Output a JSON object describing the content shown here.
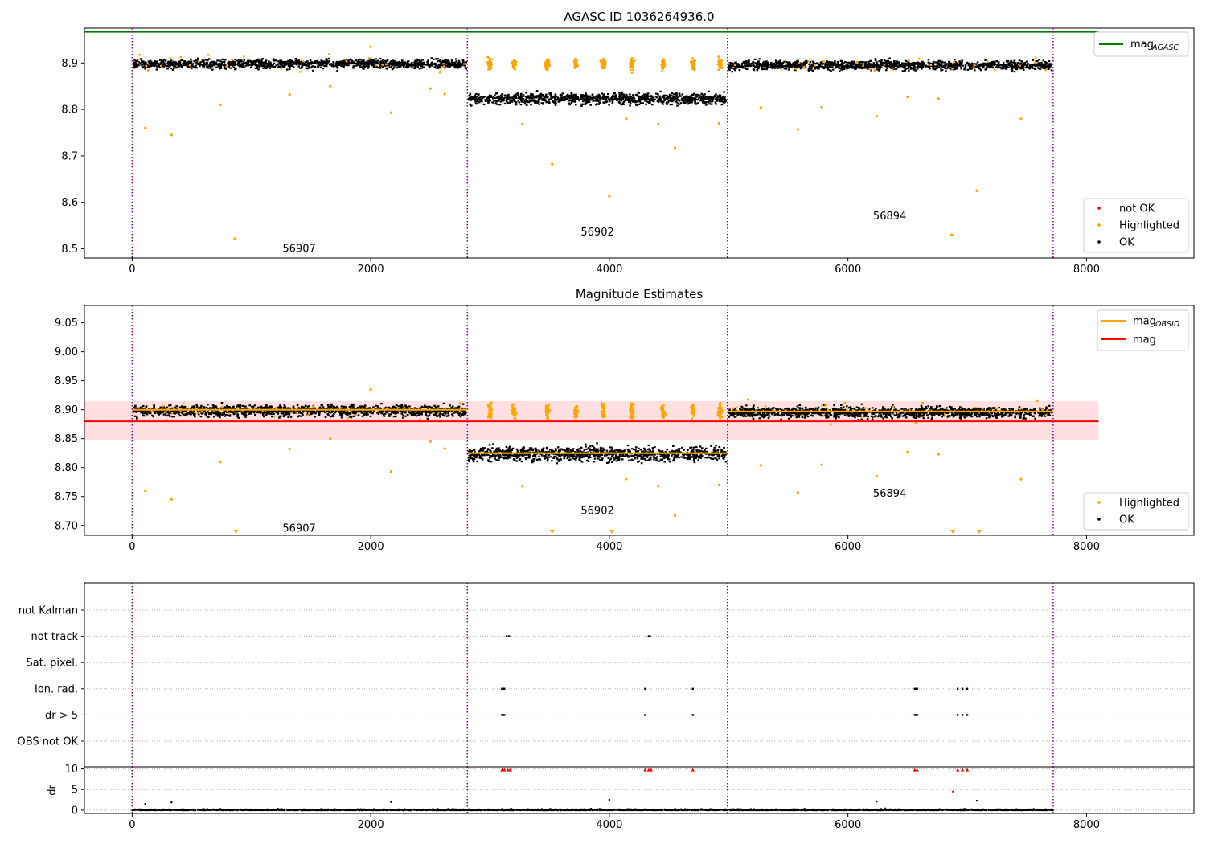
{
  "chart_data": [
    {
      "type": "scatter",
      "title": "AGASC ID 1036264936.0",
      "xlim": [
        -400,
        8900
      ],
      "ylim": [
        8.48,
        8.975
      ],
      "yticks": [
        "8.5",
        "8.6",
        "8.7",
        "8.8",
        "8.9"
      ],
      "xticks": [
        "0",
        "2000",
        "4000",
        "6000",
        "8000"
      ],
      "obs_boundaries": [
        0,
        2810,
        4990,
        7720
      ],
      "obs_labels": [
        {
          "text": "56907",
          "x": 1400,
          "y": 8.5
        },
        {
          "text": "56902",
          "x": 3900,
          "y": 8.535
        },
        {
          "text": "56894",
          "x": 6350,
          "y": 8.57
        }
      ],
      "mag_agasc": 8.967,
      "obs_mean_levels": [
        {
          "x0": 0,
          "x1": 2810,
          "y": 8.9,
          "spread": 0.008
        },
        {
          "x0": 2810,
          "x1": 4990,
          "y": 8.825,
          "spread": 0.01
        },
        {
          "x0": 4990,
          "x1": 7720,
          "y": 8.897,
          "spread": 0.008
        }
      ],
      "highlighted_points": [
        [
          110,
          8.76
        ],
        [
          330,
          8.745
        ],
        [
          740,
          8.81
        ],
        [
          860,
          8.522
        ],
        [
          1320,
          8.832
        ],
        [
          1660,
          8.85
        ],
        [
          2170,
          8.793
        ],
        [
          2500,
          8.845
        ],
        [
          2620,
          8.833
        ],
        [
          3270,
          8.768
        ],
        [
          3520,
          8.682
        ],
        [
          4000,
          8.613
        ],
        [
          4140,
          8.78
        ],
        [
          4410,
          8.768
        ],
        [
          4550,
          8.717
        ],
        [
          4920,
          8.77
        ],
        [
          5270,
          8.804
        ],
        [
          5580,
          8.757
        ],
        [
          5780,
          8.805
        ],
        [
          6240,
          8.785
        ],
        [
          6500,
          8.827
        ],
        [
          6760,
          8.823
        ],
        [
          6870,
          8.53
        ],
        [
          7080,
          8.625
        ],
        [
          7450,
          8.78
        ],
        [
          2000,
          8.935
        ],
        [
          2580,
          8.88
        ]
      ],
      "highlighted_clusters": [
        3000,
        3200,
        3480,
        3720,
        3950,
        4190,
        4450,
        4700,
        4930
      ],
      "legend_upper": [
        {
          "label": "mag",
          "sub": "AGASC",
          "color": "#008000"
        }
      ],
      "legend_lower": [
        {
          "label": "not OK",
          "color": "#ff0000"
        },
        {
          "label": "Highlighted",
          "color": "#ffa500"
        },
        {
          "label": "OK",
          "color": "#000000"
        }
      ]
    },
    {
      "type": "scatter",
      "title": "Magnitude Estimates",
      "xlim": [
        -400,
        8900
      ],
      "ylim": [
        8.683,
        9.08
      ],
      "yticks": [
        "8.70",
        "8.75",
        "8.80",
        "8.85",
        "8.90",
        "8.95",
        "9.00",
        "9.05"
      ],
      "xticks": [
        "0",
        "2000",
        "4000",
        "6000",
        "8000"
      ],
      "obs_boundaries": [
        0,
        2810,
        4990,
        7720
      ],
      "obs_labels": [
        {
          "text": "56907",
          "x": 1400,
          "y": 8.695
        },
        {
          "text": "56902",
          "x": 3900,
          "y": 8.725
        },
        {
          "text": "56894",
          "x": 6350,
          "y": 8.755
        }
      ],
      "mag": 8.88,
      "mag_band": [
        8.847,
        8.915
      ],
      "mag_obsid": [
        {
          "x0": 0,
          "x1": 2810,
          "y": 8.9
        },
        {
          "x0": 2810,
          "x1": 4990,
          "y": 8.825
        },
        {
          "x0": 4990,
          "x1": 7720,
          "y": 8.897
        }
      ],
      "offscale_markers": [
        870,
        3520,
        4020,
        6880,
        7100
      ],
      "legend_upper": [
        {
          "label": "mag",
          "sub": "OBSID",
          "color": "#ffa500"
        },
        {
          "label": "mag",
          "sub": "",
          "color": "#ff0000"
        }
      ],
      "legend_lower": [
        {
          "label": "Highlighted",
          "color": "#ffa500"
        },
        {
          "label": "OK",
          "color": "#000000"
        }
      ]
    },
    {
      "type": "scatter",
      "xlim": [
        -400,
        8900
      ],
      "categories": [
        "not Kalman",
        "not track",
        "Sat. pixel.",
        "Ion. rad.",
        "dr > 5",
        "OBS not OK"
      ],
      "flags": {
        "not track": [
          3140,
          3160,
          4330,
          4340
        ],
        "Ion. rad.": [
          3100,
          3110,
          3120,
          4300,
          4700,
          6560,
          6570,
          6580,
          6920,
          6960,
          7000
        ],
        "dr > 5": [
          3100,
          3110,
          3120,
          4300,
          4700,
          6560,
          6570,
          6580,
          6920,
          6960,
          7000
        ]
      }
    },
    {
      "type": "scatter",
      "ylabel": "dr",
      "xlim": [
        -400,
        8900
      ],
      "ylim": [
        -0.8,
        10.5
      ],
      "yticks": [
        "0",
        "5",
        "10"
      ],
      "xticks": [
        "0",
        "2000",
        "4000",
        "6000",
        "8000"
      ],
      "dr_outliers": [
        [
          110,
          1.5
        ],
        [
          330,
          1.9
        ],
        [
          2170,
          2.0
        ],
        [
          4000,
          2.5
        ],
        [
          6240,
          2.1
        ],
        [
          7080,
          2.3
        ],
        [
          6880,
          4.5
        ]
      ],
      "dr_high": [
        3100,
        3120,
        3150,
        3170,
        4300,
        4330,
        4350,
        4700,
        6560,
        6580,
        6920,
        6960,
        7000
      ]
    }
  ]
}
